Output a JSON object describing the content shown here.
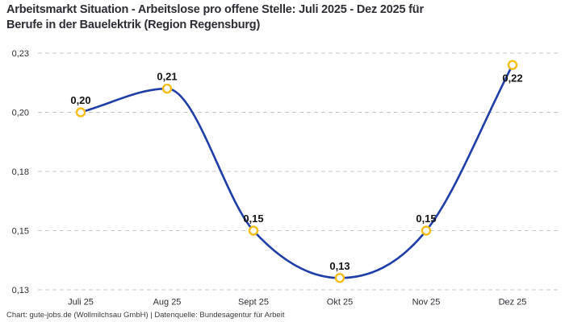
{
  "header": {
    "title_line1": "Arbeitsmarkt Situation - Arbeitslose pro offene Stelle: Juli 2025 - Dez 2025 für",
    "title_line2": "Berufe in der Bauelektrik (Region Regensburg)"
  },
  "footer": {
    "text": "Chart: gute-jobs.de (Wollmilchsau GmbH) | Datenquelle: Bundesagentur für Arbeit"
  },
  "chart_data": {
    "type": "line",
    "title": "Arbeitsmarkt Situation - Arbeitslose pro offene Stelle: Juli 2025 - Dez 2025 für Berufe in der Bauelektrik (Region Regensburg)",
    "categories": [
      "Juli 25",
      "Aug 25",
      "Sept 25",
      "Okt 25",
      "Nov 25",
      "Dez 25"
    ],
    "values": [
      0.2,
      0.21,
      0.15,
      0.13,
      0.15,
      0.22
    ],
    "point_labels": [
      "0,20",
      "0,21",
      "0,15",
      "0,13",
      "0,15",
      "0,22"
    ],
    "y_ticks": [
      {
        "value": 0.225,
        "label": "0,23"
      },
      {
        "value": 0.2,
        "label": "0,20"
      },
      {
        "value": 0.175,
        "label": "0,18"
      },
      {
        "value": 0.15,
        "label": "0,15"
      },
      {
        "value": 0.125,
        "label": "0,13"
      }
    ],
    "ylim": [
      0.125,
      0.225
    ],
    "xlabel": "",
    "ylabel": "",
    "legend": "none",
    "grid": "horizontal-dashed",
    "curve": "monotone",
    "line_color": "#1f3ea8",
    "marker_stroke_color": "#f6bd16",
    "marker_fill_color": "#ffffff",
    "grid_color": "#c7c7c7",
    "label_color": "#141414"
  }
}
